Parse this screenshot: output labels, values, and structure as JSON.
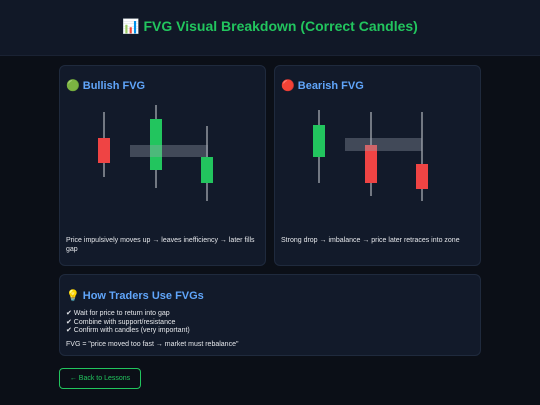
{
  "header": {
    "title": "📊 FVG Visual Breakdown (Correct Candles)"
  },
  "cards": [
    {
      "title": "🟢 Bullish FVG",
      "description": "Price impulsively moves up → leaves inefficiency → later fills gap"
    },
    {
      "title": "🔴 Bearish FVG",
      "description": "Strong drop → imbalance → price later retraces into zone"
    }
  ],
  "usage": {
    "title": "💡 How Traders Use FVGs",
    "items": [
      "✔ Wait for price to return into gap",
      "✔ Combine with support/resistance",
      "✔ Confirm with candles (very important)"
    ],
    "formula": "FVG = \"price moved too fast → market must rebalance\""
  },
  "button": {
    "label": "← Back to Lessons"
  }
}
